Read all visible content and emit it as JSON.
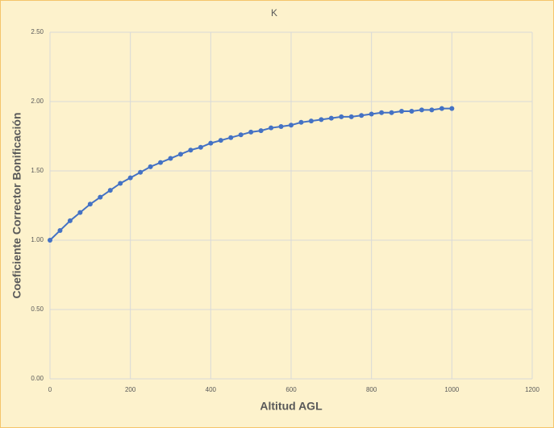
{
  "chart_data": {
    "type": "line",
    "title": "K",
    "x_label": "Altitud AGL",
    "y_label": "Coeficiente Corrector Bonificación",
    "x": [
      0,
      25,
      50,
      75,
      100,
      125,
      150,
      175,
      200,
      225,
      250,
      275,
      300,
      325,
      350,
      375,
      400,
      425,
      450,
      475,
      500,
      525,
      550,
      575,
      600,
      625,
      650,
      675,
      700,
      725,
      750,
      775,
      800,
      825,
      850,
      875,
      900,
      925,
      950,
      975,
      1000
    ],
    "series": [
      {
        "name": "K",
        "color": "#4472c4",
        "values": [
          1.0,
          1.07,
          1.14,
          1.2,
          1.26,
          1.31,
          1.36,
          1.41,
          1.45,
          1.49,
          1.53,
          1.56,
          1.59,
          1.62,
          1.65,
          1.67,
          1.7,
          1.72,
          1.74,
          1.76,
          1.78,
          1.79,
          1.81,
          1.82,
          1.83,
          1.85,
          1.86,
          1.87,
          1.88,
          1.89,
          1.89,
          1.9,
          1.91,
          1.92,
          1.92,
          1.93,
          1.93,
          1.94,
          1.94,
          1.95,
          1.95
        ]
      }
    ],
    "xlim": [
      0,
      1200
    ],
    "xticks": [
      0,
      200,
      400,
      600,
      800,
      1000,
      1200
    ],
    "ylim": [
      0,
      2.5
    ],
    "yticks": [
      {
        "value": 0,
        "label": "0.00"
      },
      {
        "value": 0.5,
        "label": "0.50"
      },
      {
        "value": 1,
        "label": "1.00"
      },
      {
        "value": 1.5,
        "label": "1.50"
      },
      {
        "value": 2,
        "label": "2.00"
      },
      {
        "value": 2.5,
        "label": "2.50"
      }
    ],
    "grid": true
  }
}
